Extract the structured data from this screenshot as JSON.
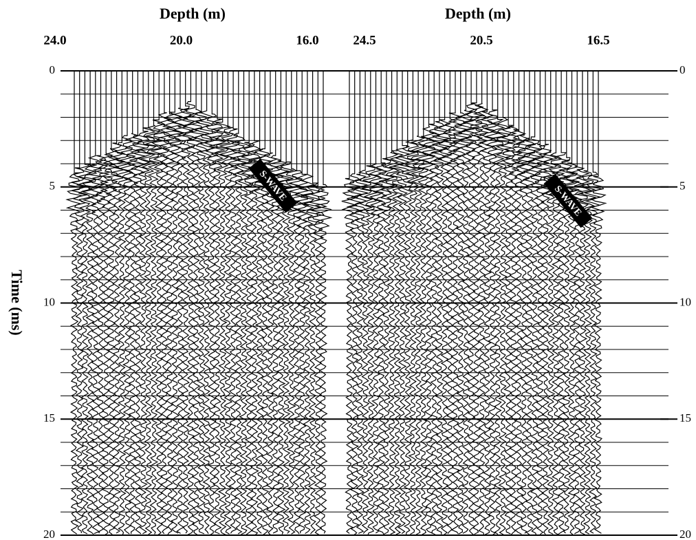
{
  "chart_data": [
    {
      "type": "seismogram",
      "title": "Depth (m)",
      "y_label": "Time (ms)",
      "xlim": [
        24.0,
        16.0
      ],
      "xticks": [
        {
          "value": 24,
          "label": "24.0"
        },
        {
          "value": 20,
          "label": "20.0"
        },
        {
          "value": 16,
          "label": "16.0"
        }
      ],
      "ylim": [
        0,
        20
      ],
      "yticks": [
        0,
        5,
        10,
        15,
        20
      ],
      "annotation": "S-WAVE"
    },
    {
      "type": "seismogram",
      "title": "Depth (m)",
      "xlim": [
        24.5,
        16.5
      ],
      "xticks": [
        {
          "value": 24.5,
          "label": "24.5"
        },
        {
          "value": 20.5,
          "label": "20.5"
        },
        {
          "value": 16.5,
          "label": "16.5"
        }
      ],
      "ylim": [
        0,
        20
      ],
      "yticks": [
        0,
        5,
        10,
        15,
        20
      ],
      "annotation": "S-WAVE"
    }
  ]
}
